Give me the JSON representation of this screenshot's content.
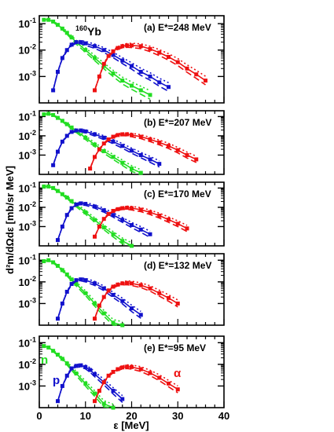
{
  "chart_data": {
    "type": "line",
    "ylabel": "d²m/dΩdε [mb/sr MeV]",
    "xlabel": "ε [MeV]",
    "xlim": [
      0,
      40
    ],
    "ylim": [
      0.0001,
      0.2
    ],
    "yscale": "log",
    "x_ticks": [
      "0",
      "10",
      "20",
      "30",
      "40"
    ],
    "y_ticks": [
      "10⁻¹",
      "10⁻²",
      "10⁻³"
    ],
    "nucleus_label": {
      "sup": "160",
      "text": "Yb"
    },
    "series_colors": {
      "n": "#22dd22",
      "p": "#1111cc",
      "alpha": "#ee1111"
    },
    "series_labels": {
      "n": "n",
      "p": "p",
      "alpha": "α"
    },
    "panels": [
      {
        "label": "(a) E*=248 MeV",
        "series": [
          {
            "particle": "n",
            "x": [
              1,
              2,
              3,
              4,
              5,
              6,
              7,
              8,
              10,
              12,
              14,
              16,
              18,
              20,
              22,
              24
            ],
            "y": [
              0.14,
              0.14,
              0.12,
              0.09,
              0.065,
              0.045,
              0.03,
              0.02,
              0.01,
              0.005,
              0.0025,
              0.0013,
              0.0007,
              0.00045,
              0.0003,
              0.0002
            ]
          },
          {
            "particle": "p",
            "x": [
              3,
              4,
              5,
              6,
              7,
              8,
              9,
              10,
              12,
              14,
              16,
              18,
              20,
              22,
              24,
              26,
              28
            ],
            "y": [
              0.0003,
              0.0015,
              0.005,
              0.01,
              0.016,
              0.02,
              0.02,
              0.018,
              0.014,
              0.01,
              0.0065,
              0.004,
              0.0025,
              0.0015,
              0.001,
              0.0006,
              0.0004
            ]
          },
          {
            "particle": "alpha",
            "x": [
              12,
              13,
              14,
              15,
              16,
              17,
              18,
              19,
              20,
              22,
              24,
              26,
              28,
              30,
              32,
              34,
              36
            ],
            "y": [
              0.0003,
              0.001,
              0.003,
              0.006,
              0.009,
              0.012,
              0.014,
              0.015,
              0.015,
              0.014,
              0.011,
              0.008,
              0.0055,
              0.0035,
              0.002,
              0.0012,
              0.0007
            ]
          }
        ]
      },
      {
        "label": "(b) E*=207 MeV",
        "series": [
          {
            "particle": "n",
            "x": [
              1,
              2,
              3,
              4,
              5,
              6,
              7,
              8,
              10,
              12,
              14,
              16,
              18,
              20,
              22
            ],
            "y": [
              0.13,
              0.14,
              0.12,
              0.085,
              0.06,
              0.04,
              0.027,
              0.018,
              0.008,
              0.0035,
              0.0016,
              0.0008,
              0.0004,
              0.0002,
              0.00012
            ]
          },
          {
            "particle": "p",
            "x": [
              3,
              4,
              5,
              6,
              7,
              8,
              9,
              10,
              12,
              14,
              16,
              18,
              20,
              22,
              24,
              26
            ],
            "y": [
              0.0003,
              0.0015,
              0.005,
              0.01,
              0.016,
              0.019,
              0.019,
              0.017,
              0.012,
              0.008,
              0.005,
              0.003,
              0.0017,
              0.001,
              0.0006,
              0.00035
            ]
          },
          {
            "particle": "alpha",
            "x": [
              11,
              12,
              13,
              14,
              15,
              16,
              17,
              18,
              19,
              20,
              22,
              24,
              26,
              28,
              30,
              32,
              34
            ],
            "y": [
              0.0002,
              0.0008,
              0.002,
              0.004,
              0.0065,
              0.009,
              0.011,
              0.012,
              0.012,
              0.011,
              0.009,
              0.0065,
              0.0045,
              0.003,
              0.0018,
              0.001,
              0.0006
            ]
          }
        ]
      },
      {
        "label": "(c) E*=170 MeV",
        "series": [
          {
            "particle": "n",
            "x": [
              1,
              2,
              3,
              4,
              5,
              6,
              7,
              8,
              10,
              12,
              14,
              16,
              18,
              20
            ],
            "y": [
              0.12,
              0.12,
              0.1,
              0.07,
              0.048,
              0.032,
              0.021,
              0.013,
              0.0055,
              0.0022,
              0.0009,
              0.0004,
              0.00018,
              0.0001
            ]
          },
          {
            "particle": "p",
            "x": [
              4,
              5,
              6,
              7,
              8,
              9,
              10,
              12,
              14,
              16,
              18,
              20,
              22,
              24
            ],
            "y": [
              0.0002,
              0.001,
              0.004,
              0.009,
              0.014,
              0.016,
              0.015,
              0.011,
              0.007,
              0.004,
              0.0022,
              0.0012,
              0.0007,
              0.0004
            ]
          },
          {
            "particle": "alpha",
            "x": [
              12,
              13,
              14,
              15,
              16,
              17,
              18,
              19,
              20,
              22,
              24,
              26,
              28,
              30,
              32
            ],
            "y": [
              0.0003,
              0.001,
              0.0025,
              0.0045,
              0.0065,
              0.008,
              0.009,
              0.0095,
              0.009,
              0.0075,
              0.0055,
              0.0037,
              0.0023,
              0.0014,
              0.0008
            ]
          }
        ]
      },
      {
        "label": "(d) E*=132 MeV",
        "series": [
          {
            "particle": "n",
            "x": [
              1,
              2,
              3,
              4,
              5,
              6,
              7,
              8,
              10,
              12,
              14,
              16,
              18
            ],
            "y": [
              0.09,
              0.1,
              0.08,
              0.055,
              0.035,
              0.022,
              0.013,
              0.008,
              0.003,
              0.001,
              0.00035,
              0.00013,
              0.0001
            ]
          },
          {
            "particle": "p",
            "x": [
              4,
              5,
              6,
              7,
              8,
              9,
              10,
              12,
              14,
              16,
              18,
              20,
              22
            ],
            "y": [
              0.0002,
              0.001,
              0.0035,
              0.008,
              0.012,
              0.013,
              0.012,
              0.0085,
              0.005,
              0.0025,
              0.0013,
              0.0006,
              0.0003
            ]
          },
          {
            "particle": "alpha",
            "x": [
              12,
              13,
              14,
              15,
              16,
              17,
              18,
              19,
              20,
              22,
              24,
              26,
              28,
              30
            ],
            "y": [
              0.0002,
              0.0008,
              0.002,
              0.004,
              0.006,
              0.0075,
              0.0085,
              0.009,
              0.0085,
              0.007,
              0.005,
              0.003,
              0.0018,
              0.001
            ]
          }
        ]
      },
      {
        "label": "(e) E*=95 MeV",
        "series": [
          {
            "particle": "n",
            "x": [
              1,
              2,
              3,
              4,
              5,
              6,
              7,
              8,
              10,
              12,
              14,
              16
            ],
            "y": [
              0.07,
              0.06,
              0.042,
              0.028,
              0.018,
              0.011,
              0.0065,
              0.0038,
              0.0013,
              0.00045,
              0.00015,
              0.0001
            ]
          },
          {
            "particle": "p",
            "x": [
              4,
              5,
              6,
              7,
              8,
              9,
              10,
              11,
              12,
              14,
              16,
              18
            ],
            "y": [
              0.0002,
              0.001,
              0.003,
              0.0065,
              0.0085,
              0.009,
              0.0075,
              0.0055,
              0.0035,
              0.0015,
              0.0006,
              0.00025
            ]
          },
          {
            "particle": "alpha",
            "x": [
              12,
              13,
              14,
              15,
              16,
              17,
              18,
              19,
              20,
              22,
              24,
              26,
              28,
              30
            ],
            "y": [
              0.0002,
              0.0006,
              0.0015,
              0.003,
              0.0045,
              0.006,
              0.0072,
              0.0078,
              0.0075,
              0.006,
              0.004,
              0.0024,
              0.0013,
              0.0007
            ]
          }
        ]
      }
    ]
  }
}
